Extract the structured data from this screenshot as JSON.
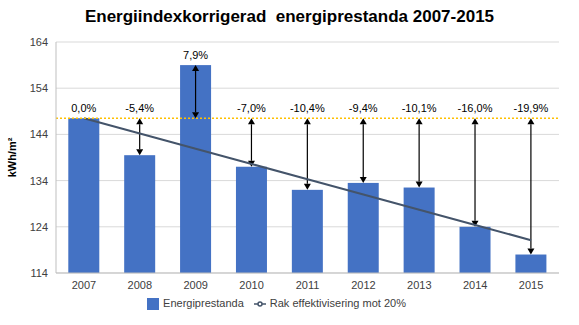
{
  "chart_data": {
    "type": "bar",
    "title": "Energiindexkorrigerad  energiprestanda 2007-2015",
    "y_label": "kWh/m²",
    "categories": [
      "2007",
      "2008",
      "2009",
      "2010",
      "2011",
      "2012",
      "2013",
      "2014",
      "2015"
    ],
    "series": [
      {
        "name": "Energiprestanda",
        "type": "bar",
        "color": "#4472c4",
        "values": [
          147.5,
          139.5,
          159,
          137,
          132,
          133.5,
          132.5,
          124,
          118
        ]
      },
      {
        "name": "Rak effektivisering mot 20%",
        "type": "line",
        "color": "#44546a",
        "values": [
          147.5,
          144.2,
          140.9,
          137.6,
          134.3,
          131,
          127.7,
          124.4,
          121.1
        ]
      }
    ],
    "reference_line": {
      "value": 147.5,
      "color": "#ffc000",
      "line_style": "dotted"
    },
    "annotations": [
      "0,0%",
      "-5,4%",
      "7,9%",
      "-7,0%",
      "-10,4%",
      "-9,4%",
      "-10,1%",
      "-16,0%",
      "-19,9%"
    ],
    "ylim": [
      114,
      164
    ],
    "yticks": [
      114,
      124,
      134,
      144,
      154,
      164
    ],
    "grid": true,
    "legend": "bottom"
  }
}
